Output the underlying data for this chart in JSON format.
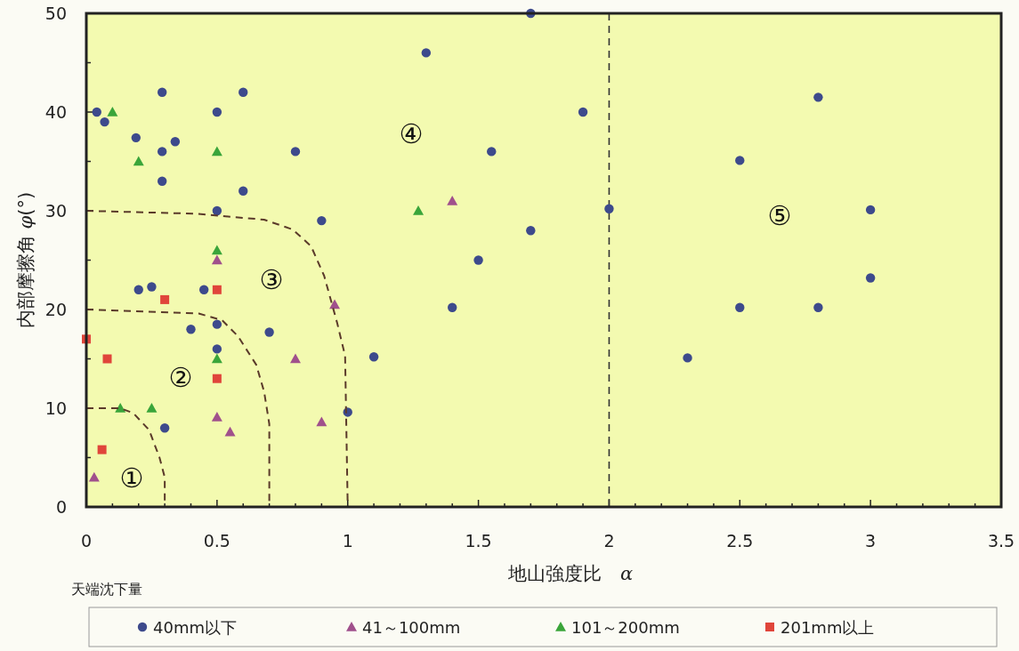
{
  "chart_data": {
    "type": "scatter",
    "xlabel": "地山強度比　*α*",
    "ylabel": "内部摩擦角 *φ*(°)",
    "legend_title": "天端沈下量",
    "legend": "bottom",
    "grid": false,
    "xlim": [
      0,
      3.5
    ],
    "ylim": [
      0,
      50
    ],
    "xticks": [
      0,
      {
        "value": 0.1,
        "label": null
      },
      {
        "value": 0.2,
        "label": null
      },
      {
        "value": 0.3,
        "label": null
      },
      {
        "value": 0.4,
        "label": null
      },
      0.5,
      {
        "value": 0.6,
        "label": null
      },
      {
        "value": 0.7,
        "label": null
      },
      {
        "value": 0.8,
        "label": null
      },
      {
        "value": 0.9,
        "label": null
      },
      1,
      {
        "value": 1.1,
        "label": null
      },
      {
        "value": 1.2,
        "label": null
      },
      {
        "value": 1.3,
        "label": null
      },
      {
        "value": 1.4,
        "label": null
      },
      1.5,
      {
        "value": 1.6,
        "label": null
      },
      {
        "value": 1.7,
        "label": null
      },
      {
        "value": 1.8,
        "label": null
      },
      {
        "value": 1.9,
        "label": null
      },
      2,
      {
        "value": 2.1,
        "label": null
      },
      {
        "value": 2.2,
        "label": null
      },
      {
        "value": 2.3,
        "label": null
      },
      {
        "value": 2.4,
        "label": null
      },
      2.5,
      {
        "value": 2.6,
        "label": null
      },
      {
        "value": 2.7,
        "label": null
      },
      {
        "value": 2.8,
        "label": null
      },
      {
        "value": 2.9,
        "label": null
      },
      3,
      {
        "value": 3.1,
        "label": null
      },
      {
        "value": 3.2,
        "label": null
      },
      {
        "value": 3.3,
        "label": null
      },
      {
        "value": 3.4,
        "label": null
      },
      3.5
    ],
    "yticks": [
      0,
      {
        "value": 5,
        "label": null
      },
      10,
      {
        "value": 15,
        "label": null
      },
      20,
      {
        "value": 25,
        "label": null
      },
      30,
      {
        "value": 35,
        "label": null
      },
      40,
      {
        "value": 45,
        "label": null
      },
      50
    ],
    "series": [
      {
        "name": "40mm以下",
        "color": "#3d4a8c",
        "marker": "circle",
        "x": [
          0.04,
          0.07,
          0.19,
          0.29,
          0.29,
          0.34,
          0.29,
          0.5,
          0.6,
          0.6,
          0.8,
          0.5,
          0.9,
          0.2,
          0.25,
          0.45,
          0.4,
          0.5,
          0.5,
          0.7,
          0.3,
          1,
          1.1,
          1.4,
          1.5,
          1.55,
          1.3,
          1.7,
          1.7,
          1.9,
          2,
          2.3,
          2.5,
          2.5,
          2.8,
          2.8,
          3,
          3
        ],
        "values": [
          40,
          39,
          37.4,
          42,
          36,
          37,
          33,
          40,
          42,
          32,
          36,
          30,
          29,
          22,
          22.3,
          22,
          18,
          18.5,
          16,
          17.7,
          8,
          9.6,
          15.2,
          20.2,
          25,
          36,
          46,
          50,
          28,
          40,
          30.2,
          15.1,
          35.1,
          20.2,
          41.5,
          20.2,
          30.1,
          23.2
        ]
      },
      {
        "name": "41～100mm",
        "color": "#a0508c",
        "marker": "triangle",
        "x": [
          0.03,
          0.5,
          0.5,
          0.55,
          0.8,
          0.9,
          0.95,
          1.4
        ],
        "values": [
          3,
          25,
          9.1,
          7.6,
          15,
          8.6,
          20.5,
          31
        ]
      },
      {
        "name": "101～200mm",
        "color": "#3aa53a",
        "marker": "triangle",
        "x": [
          0.1,
          0.2,
          0.5,
          0.5,
          0.5,
          0.13,
          0.25,
          1.27
        ],
        "values": [
          40,
          35,
          36,
          26,
          15,
          10,
          10,
          30
        ]
      },
      {
        "name": "201mm以上",
        "color": "#e0453a",
        "marker": "square",
        "x": [
          0,
          0.08,
          0.06,
          0.3,
          0.5,
          0.5
        ],
        "values": [
          17,
          15,
          5.8,
          21,
          22,
          13
        ]
      },
      {
        "type": "line",
        "color": "#5a3a2a",
        "marker": "none",
        "line_style": "dashed",
        "x": [
          0,
          0.13,
          0.18,
          0.24,
          0.28,
          0.3,
          0.3
        ],
        "values": [
          10,
          10,
          9.5,
          7.8,
          5,
          3,
          0
        ]
      },
      {
        "type": "line",
        "color": "#5a3a2a",
        "marker": "none",
        "line_style": "dashed",
        "x": [
          0,
          0.43,
          0.52,
          0.58,
          0.65,
          0.68,
          0.7,
          0.7
        ],
        "values": [
          20,
          19.6,
          18.9,
          17.3,
          14.4,
          11.7,
          8.4,
          0
        ]
      },
      {
        "type": "line",
        "color": "#5a3a2a",
        "marker": "none",
        "line_style": "dashed",
        "x": [
          0,
          0.42,
          0.68,
          0.79,
          0.86,
          0.91,
          0.96,
          0.99,
          1
        ],
        "values": [
          30,
          29.7,
          29.1,
          28.1,
          26.4,
          23.4,
          18.6,
          15.3,
          0
        ]
      }
    ],
    "ref_lines": [
      {
        "axis": "x",
        "value": 2,
        "color": "#333333",
        "line_style": "dashed"
      }
    ],
    "annotations": [
      "①",
      "②",
      "③",
      "④",
      "⑤"
    ]
  }
}
